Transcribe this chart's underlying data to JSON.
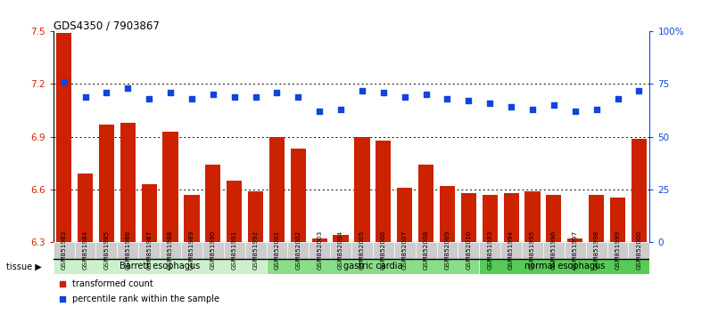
{
  "title": "GDS4350 / 7903867",
  "samples": [
    "GSM851983",
    "GSM851984",
    "GSM851985",
    "GSM851986",
    "GSM851987",
    "GSM851988",
    "GSM851989",
    "GSM851990",
    "GSM851991",
    "GSM851992",
    "GSM852001",
    "GSM852002",
    "GSM852003",
    "GSM852004",
    "GSM852005",
    "GSM852006",
    "GSM852007",
    "GSM852008",
    "GSM852009",
    "GSM852010",
    "GSM851993",
    "GSM851994",
    "GSM851995",
    "GSM851996",
    "GSM851997",
    "GSM851998",
    "GSM851999",
    "GSM852000"
  ],
  "bar_values": [
    7.49,
    6.69,
    6.97,
    6.98,
    6.63,
    6.93,
    6.57,
    6.74,
    6.65,
    6.59,
    6.9,
    6.83,
    6.32,
    6.34,
    6.9,
    6.88,
    6.61,
    6.74,
    6.62,
    6.58,
    6.57,
    6.58,
    6.59,
    6.57,
    6.32,
    6.57,
    6.55,
    6.89
  ],
  "dot_values": [
    76,
    69,
    71,
    73,
    68,
    71,
    68,
    70,
    69,
    69,
    71,
    69,
    62,
    63,
    72,
    71,
    69,
    70,
    68,
    67,
    66,
    64,
    63,
    65,
    62,
    63,
    68,
    72
  ],
  "ylim_min": 6.3,
  "ylim_max": 7.5,
  "y2lim_min": 0,
  "y2lim_max": 100,
  "yticks": [
    6.3,
    6.6,
    6.9,
    7.2,
    7.5
  ],
  "y2ticks": [
    0,
    25,
    50,
    75,
    100
  ],
  "y2ticklabels": [
    "0",
    "25",
    "50",
    "75",
    "100%"
  ],
  "bar_color": "#cc2200",
  "dot_color": "#1144dd",
  "bg_color": "#ffffff",
  "group_labels": [
    "Barrett esophagus",
    "gastric cardia",
    "normal esophagus"
  ],
  "group_starts": [
    0,
    10,
    20
  ],
  "group_ends": [
    9,
    19,
    27
  ],
  "group_colors": [
    "#ccf0cc",
    "#88dd88",
    "#55cc55"
  ],
  "xtick_bg": "#cccccc",
  "tissue_label": "tissue",
  "legend_bar": "transformed count",
  "legend_dot": "percentile rank within the sample",
  "gridline_y": [
    6.6,
    6.9,
    7.2
  ]
}
